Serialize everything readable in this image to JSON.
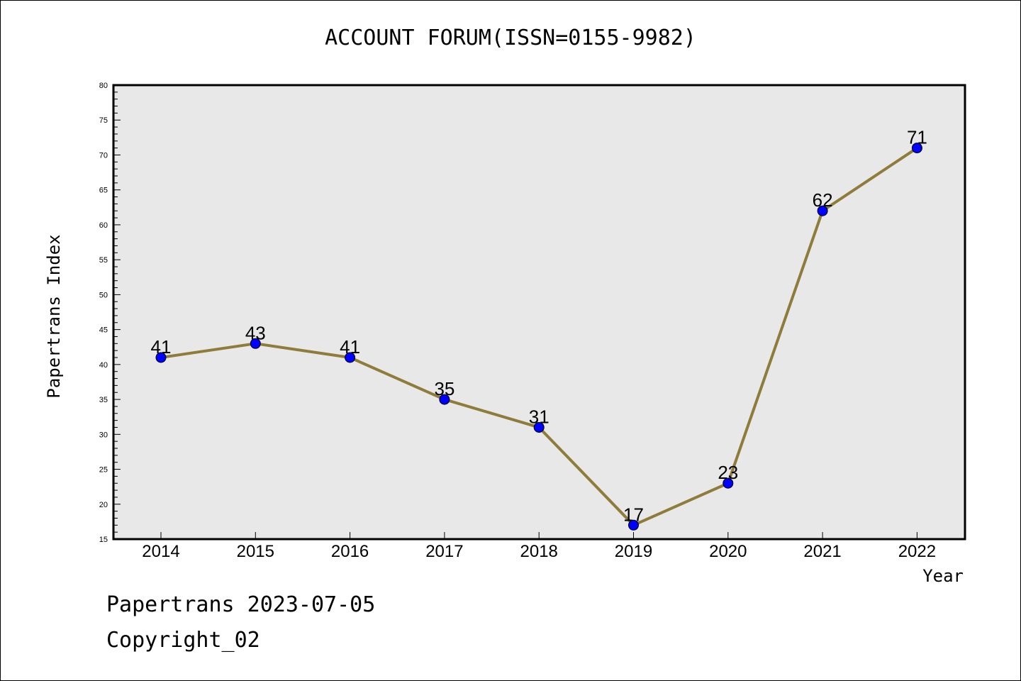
{
  "chart_data": {
    "type": "line",
    "title": "ACCOUNT FORUM(ISSN=0155-9982)",
    "xlabel": "Year",
    "ylabel": "Papertrans Index",
    "categories": [
      "2014",
      "2015",
      "2016",
      "2017",
      "2018",
      "2019",
      "2020",
      "2021",
      "2022"
    ],
    "series": [
      {
        "values": [
          41,
          43,
          41,
          35,
          31,
          17,
          23,
          62,
          71
        ]
      }
    ],
    "ylim": [
      15,
      80
    ],
    "yticks": [
      15,
      20,
      25,
      30,
      35,
      40,
      45,
      50,
      55,
      60,
      65,
      70,
      75,
      80
    ],
    "grid": false,
    "colors": {
      "line": "#8E7C3A",
      "marker": "#0000FF",
      "plot_bg": "#E8E8E8"
    }
  },
  "footer": {
    "line1": "Papertrans 2023-07-05",
    "line2": "Copyright_02"
  }
}
